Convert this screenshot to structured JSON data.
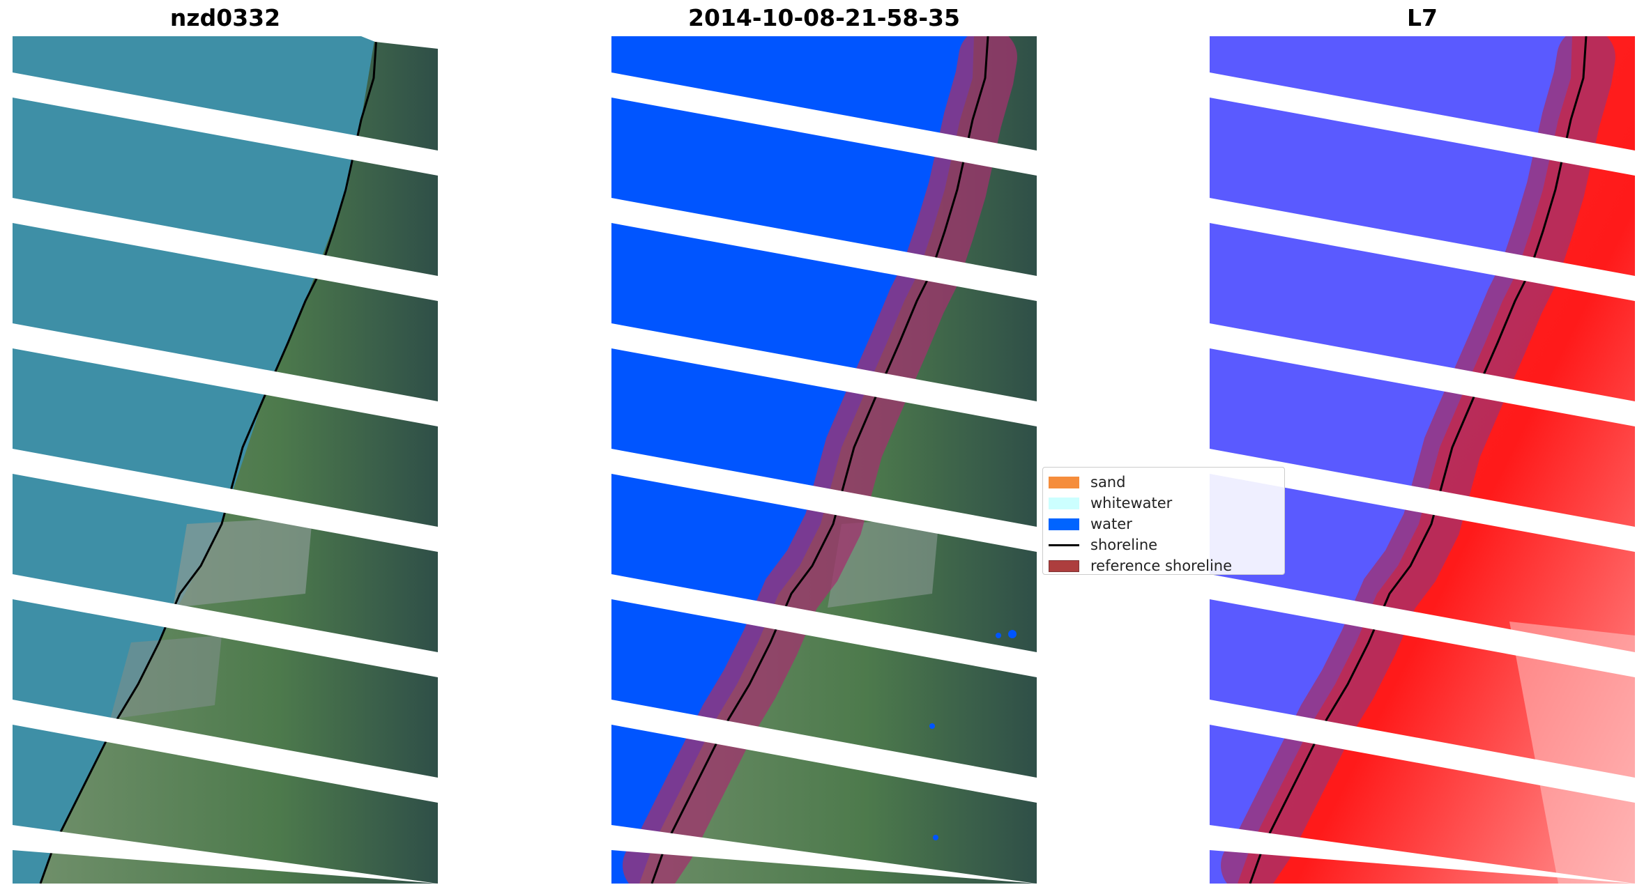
{
  "panels": [
    {
      "title": "nzd0332",
      "kind": "rgb"
    },
    {
      "title": "2014-10-08-21-58-35",
      "kind": "classified"
    },
    {
      "title": "L7",
      "kind": "index"
    }
  ],
  "legend": {
    "items": [
      {
        "label": "sand",
        "color": "#f58d3c",
        "kind": "patch"
      },
      {
        "label": "whitewater",
        "color": "#ccffff",
        "kind": "patch"
      },
      {
        "label": "water",
        "color": "#0064ff",
        "kind": "patch"
      },
      {
        "label": "shoreline",
        "color": "#000000",
        "kind": "line"
      },
      {
        "label": "reference shoreline",
        "color": "#a52a2a",
        "kind": "patch"
      }
    ]
  },
  "colors": {
    "sea": "#3e8fa6",
    "land": "#5b7f5a",
    "land_dark": "#2e4a45",
    "water_class": "#0055ff",
    "index_neg": "#5a5aff",
    "index_pos": "#ff2020",
    "buffer": "#a2326e"
  }
}
